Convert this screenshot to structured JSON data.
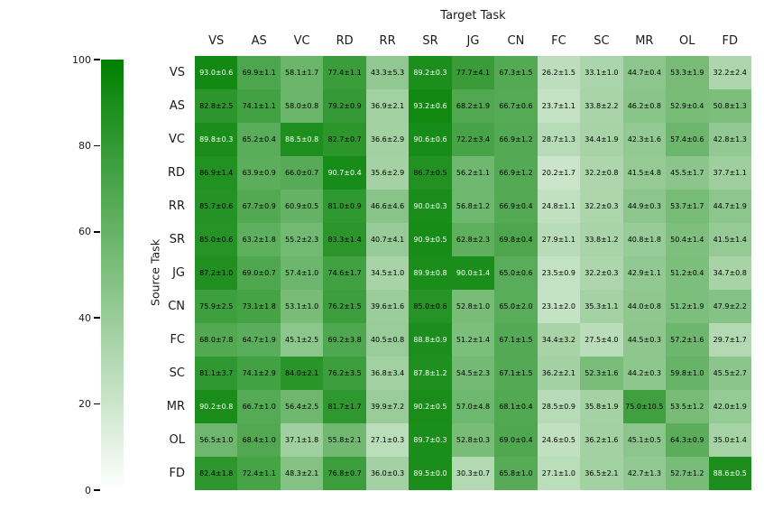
{
  "chart_data": {
    "type": "heatmap",
    "title": "",
    "xlabel": "Target Task",
    "ylabel": "Source Task",
    "columns": [
      "VS",
      "AS",
      "VC",
      "RD",
      "RR",
      "SR",
      "JG",
      "CN",
      "FC",
      "SC",
      "MR",
      "OL",
      "FD"
    ],
    "rows": [
      "VS",
      "AS",
      "VC",
      "RD",
      "RR",
      "SR",
      "JG",
      "CN",
      "FC",
      "SC",
      "MR",
      "OL",
      "FD"
    ],
    "annotation_format": "value±error",
    "values": [
      [
        93.0,
        69.9,
        58.1,
        77.4,
        43.3,
        89.2,
        77.7,
        67.3,
        26.2,
        33.1,
        44.7,
        53.3,
        32.2
      ],
      [
        82.8,
        74.1,
        58.0,
        79.2,
        36.9,
        93.2,
        68.2,
        66.7,
        23.7,
        33.8,
        46.2,
        52.9,
        50.8
      ],
      [
        89.8,
        65.2,
        88.5,
        82.7,
        36.6,
        90.6,
        72.2,
        66.9,
        28.7,
        34.4,
        42.3,
        57.4,
        42.8
      ],
      [
        86.9,
        63.9,
        66.0,
        90.7,
        35.6,
        86.7,
        56.2,
        66.9,
        20.2,
        32.2,
        41.5,
        45.5,
        37.7
      ],
      [
        85.7,
        67.7,
        60.9,
        81.0,
        46.6,
        90.0,
        56.8,
        66.9,
        24.8,
        32.2,
        44.9,
        53.7,
        44.7
      ],
      [
        85.0,
        63.2,
        55.2,
        83.3,
        40.7,
        90.9,
        62.8,
        69.8,
        27.9,
        33.8,
        40.8,
        50.4,
        41.5
      ],
      [
        87.2,
        69.0,
        57.4,
        74.6,
        34.5,
        89.9,
        90.0,
        65.0,
        23.5,
        32.2,
        42.9,
        51.2,
        34.7
      ],
      [
        75.9,
        73.1,
        53.1,
        76.2,
        39.6,
        85.0,
        52.8,
        65.0,
        23.1,
        35.3,
        44.0,
        51.2,
        47.9
      ],
      [
        68.0,
        64.7,
        45.1,
        69.2,
        40.5,
        88.8,
        51.2,
        67.1,
        34.4,
        27.5,
        44.5,
        57.2,
        29.7
      ],
      [
        81.1,
        74.1,
        84.0,
        76.2,
        36.8,
        87.8,
        54.5,
        67.1,
        36.2,
        52.3,
        44.2,
        59.8,
        45.5
      ],
      [
        90.2,
        66.7,
        56.4,
        81.7,
        39.9,
        90.2,
        57.0,
        68.1,
        28.5,
        35.8,
        75.0,
        53.5,
        42.0
      ],
      [
        56.5,
        68.4,
        37.1,
        55.8,
        27.1,
        89.7,
        52.8,
        69.0,
        24.6,
        36.2,
        45.1,
        64.3,
        35.0
      ],
      [
        82.4,
        72.4,
        48.3,
        76.8,
        36.0,
        89.5,
        30.3,
        65.8,
        27.1,
        36.5,
        42.7,
        52.7,
        88.6
      ]
    ],
    "errors": [
      [
        0.6,
        1.1,
        1.7,
        1.1,
        5.3,
        0.3,
        4.1,
        1.5,
        1.5,
        1.0,
        0.4,
        1.9,
        2.4
      ],
      [
        2.5,
        1.1,
        0.8,
        0.9,
        2.1,
        0.6,
        1.9,
        0.6,
        1.1,
        2.2,
        0.8,
        0.4,
        1.3
      ],
      [
        0.3,
        0.4,
        0.8,
        0.7,
        2.9,
        0.6,
        3.4,
        1.2,
        1.3,
        1.9,
        1.6,
        0.6,
        1.3
      ],
      [
        1.4,
        0.9,
        0.7,
        0.4,
        2.9,
        0.5,
        1.1,
        1.2,
        1.7,
        0.8,
        4.8,
        1.7,
        1.1
      ],
      [
        0.6,
        0.9,
        0.5,
        0.9,
        4.6,
        0.3,
        1.2,
        0.4,
        1.1,
        0.3,
        0.3,
        1.7,
        1.9
      ],
      [
        0.6,
        1.8,
        2.3,
        1.4,
        4.1,
        0.5,
        2.3,
        0.4,
        1.1,
        1.2,
        1.8,
        1.4,
        1.4
      ],
      [
        1.0,
        0.7,
        1.0,
        1.7,
        1.0,
        0.8,
        1.4,
        0.6,
        0.9,
        0.3,
        1.1,
        0.4,
        0.8
      ],
      [
        2.5,
        1.8,
        1.0,
        1.5,
        1.6,
        0.6,
        1.0,
        2.0,
        2.0,
        1.1,
        0.8,
        1.9,
        2.2
      ],
      [
        7.8,
        1.9,
        2.5,
        3.8,
        0.8,
        0.9,
        1.4,
        1.5,
        3.2,
        4.0,
        0.3,
        1.6,
        1.7
      ],
      [
        3.7,
        2.9,
        2.1,
        3.5,
        3.4,
        1.2,
        2.3,
        1.5,
        2.1,
        1.6,
        0.3,
        1.0,
        2.7
      ],
      [
        0.8,
        1.0,
        2.5,
        1.7,
        7.2,
        0.5,
        4.8,
        0.4,
        0.9,
        1.9,
        10.5,
        1.2,
        1.9
      ],
      [
        1.0,
        1.0,
        1.8,
        2.1,
        0.3,
        0.3,
        0.3,
        0.4,
        0.5,
        1.6,
        0.5,
        0.9,
        1.4
      ],
      [
        1.8,
        1.1,
        2.1,
        0.7,
        0.3,
        0.0,
        0.7,
        1.0,
        1.0,
        2.1,
        1.3,
        1.2,
        0.5
      ]
    ],
    "colorbar": {
      "min": 0,
      "max": 100,
      "ticks": [
        100,
        80,
        60,
        40,
        20,
        0
      ],
      "color_min": "#ffffff",
      "color_max": "#008000"
    },
    "text_white_threshold": 87.5,
    "grid": false,
    "legend_position": "left-colorbar"
  }
}
